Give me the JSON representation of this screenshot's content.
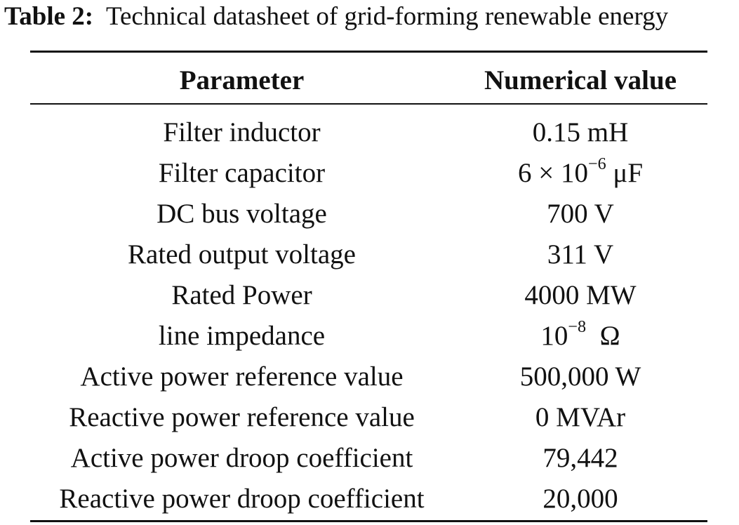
{
  "caption": {
    "label": "Table 2:",
    "text": "Technical datasheet of grid-forming renewable energy"
  },
  "table": {
    "headers": {
      "parameter": "Parameter",
      "value": "Numerical value"
    },
    "rows": [
      {
        "parameter": "Filter inductor",
        "value": "0.15 mH"
      },
      {
        "parameter": "Filter capacitor",
        "value": "6 × 10",
        "exponent": "−6",
        "unit": " μF"
      },
      {
        "parameter": "DC bus voltage",
        "value": "700 V"
      },
      {
        "parameter": "Rated output voltage",
        "value": "311 V"
      },
      {
        "parameter": "Rated Power",
        "value": "4000 MW"
      },
      {
        "parameter": "line impedance",
        "value": "10",
        "exponent": "−8",
        "unit": "  Ω"
      },
      {
        "parameter": "Active power reference value",
        "value": "500,000 W"
      },
      {
        "parameter": "Reactive power reference value",
        "value": "0 MVAr"
      },
      {
        "parameter": "Active power droop coefficient",
        "value": "79,442"
      },
      {
        "parameter": "Reactive power droop coefficient",
        "value": "20,000"
      }
    ]
  }
}
